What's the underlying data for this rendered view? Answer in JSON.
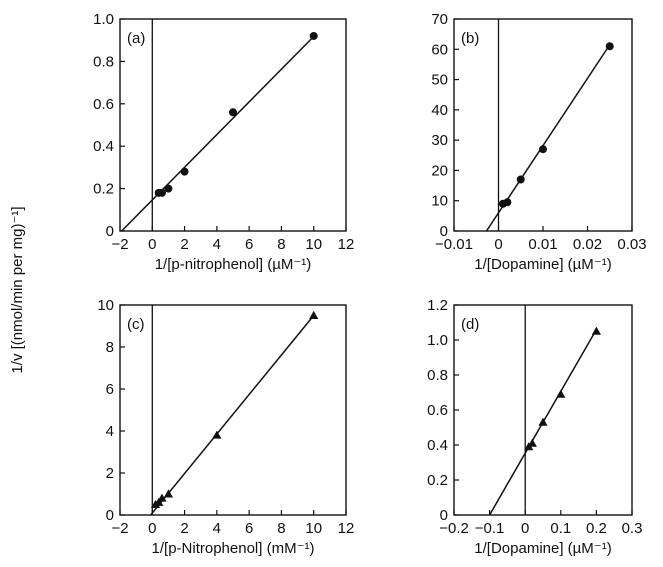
{
  "y_axis_label": "1/v [(nmol/min per mg)⁻¹]",
  "chart_data": [
    {
      "type": "scatter",
      "panel_label": "(a)",
      "xlabel": "1/[p-nitrophenol] (µM⁻¹)",
      "ylabel": "1/v [(nmol/min per mg)⁻¹]",
      "xlim": [
        -2,
        12
      ],
      "ylim": [
        0,
        1.0
      ],
      "xticks": [
        -2,
        0,
        2,
        4,
        6,
        8,
        10,
        12
      ],
      "yticks": [
        0,
        0.2,
        0.4,
        0.6,
        0.8,
        1.0
      ],
      "xtick_labels": [
        "−2",
        "0",
        "2",
        "4",
        "6",
        "8",
        "10",
        "12"
      ],
      "ytick_labels": [
        "0",
        "0.2",
        "0.4",
        "0.6",
        "0.8",
        "1.0"
      ],
      "marker": "circle",
      "series": [
        {
          "x": [
            0.4,
            0.6,
            1.0,
            2.0,
            5.0,
            10.0
          ],
          "y": [
            0.18,
            0.18,
            0.2,
            0.28,
            0.56,
            0.92
          ]
        }
      ],
      "fit_line": {
        "x": [
          -1.9,
          10.1
        ],
        "y": [
          0.0,
          0.925
        ]
      },
      "grid": false
    },
    {
      "type": "scatter",
      "panel_label": "(b)",
      "xlabel": "1/[Dopamine] (µM⁻¹)",
      "ylabel": "1/v [(nmol/min per mg)⁻¹]",
      "xlim": [
        -0.01,
        0.03
      ],
      "ylim": [
        0,
        70
      ],
      "xticks": [
        -0.01,
        0,
        0.01,
        0.02,
        0.03
      ],
      "yticks": [
        0,
        10,
        20,
        30,
        40,
        50,
        60,
        70
      ],
      "xtick_labels": [
        "−0.01",
        "0",
        "0.01",
        "0.02",
        "0.03"
      ],
      "ytick_labels": [
        "0",
        "10",
        "20",
        "30",
        "40",
        "50",
        "60",
        "70"
      ],
      "marker": "circle",
      "series": [
        {
          "x": [
            0.001,
            0.002,
            0.005,
            0.01,
            0.025
          ],
          "y": [
            9,
            9.5,
            17,
            27,
            61
          ]
        }
      ],
      "fit_line": {
        "x": [
          -0.0027,
          0.025
        ],
        "y": [
          0.0,
          61.5
        ]
      },
      "grid": false
    },
    {
      "type": "scatter",
      "panel_label": "(c)",
      "xlabel": "1/[p-Nitrophenol] (mM⁻¹)",
      "ylabel": "1/v [(nmol/min per mg)⁻¹]",
      "xlim": [
        -2,
        12
      ],
      "ylim": [
        0,
        10
      ],
      "xticks": [
        -2,
        0,
        2,
        4,
        6,
        8,
        10,
        12
      ],
      "yticks": [
        0,
        2,
        4,
        6,
        8,
        10
      ],
      "xtick_labels": [
        "−2",
        "0",
        "2",
        "4",
        "6",
        "8",
        "10",
        "12"
      ],
      "ytick_labels": [
        "0",
        "2",
        "4",
        "6",
        "8",
        "10"
      ],
      "marker": "triangle",
      "series": [
        {
          "x": [
            0.2,
            0.4,
            0.6,
            1.0,
            4.0,
            10.0
          ],
          "y": [
            0.5,
            0.6,
            0.8,
            1.0,
            3.8,
            9.5
          ]
        }
      ],
      "fit_line": {
        "x": [
          -0.1,
          10.0
        ],
        "y": [
          0.0,
          9.5
        ]
      },
      "grid": false
    },
    {
      "type": "scatter",
      "panel_label": "(d)",
      "xlabel": "1/[Dopamine] (µM⁻¹)",
      "ylabel": "1/v [(nmol/min per mg)⁻¹]",
      "xlim": [
        -0.2,
        0.3
      ],
      "ylim": [
        0,
        1.2
      ],
      "xticks": [
        -0.2,
        -0.1,
        0,
        0.1,
        0.2,
        0.3
      ],
      "yticks": [
        0,
        0.2,
        0.4,
        0.6,
        0.8,
        1.0,
        1.2
      ],
      "xtick_labels": [
        "−0.2",
        "−0.1",
        "0",
        "0.1",
        "0.2",
        "0.3"
      ],
      "ytick_labels": [
        "0",
        "0.2",
        "0.4",
        "0.6",
        "0.8",
        "1.0",
        "1.2"
      ],
      "marker": "triangle",
      "series": [
        {
          "x": [
            0.01,
            0.02,
            0.05,
            0.1,
            0.2
          ],
          "y": [
            0.39,
            0.41,
            0.53,
            0.69,
            1.05
          ]
        }
      ],
      "fit_line": {
        "x": [
          -0.1,
          0.2
        ],
        "y": [
          0.0,
          1.06
        ]
      },
      "grid": false
    }
  ]
}
